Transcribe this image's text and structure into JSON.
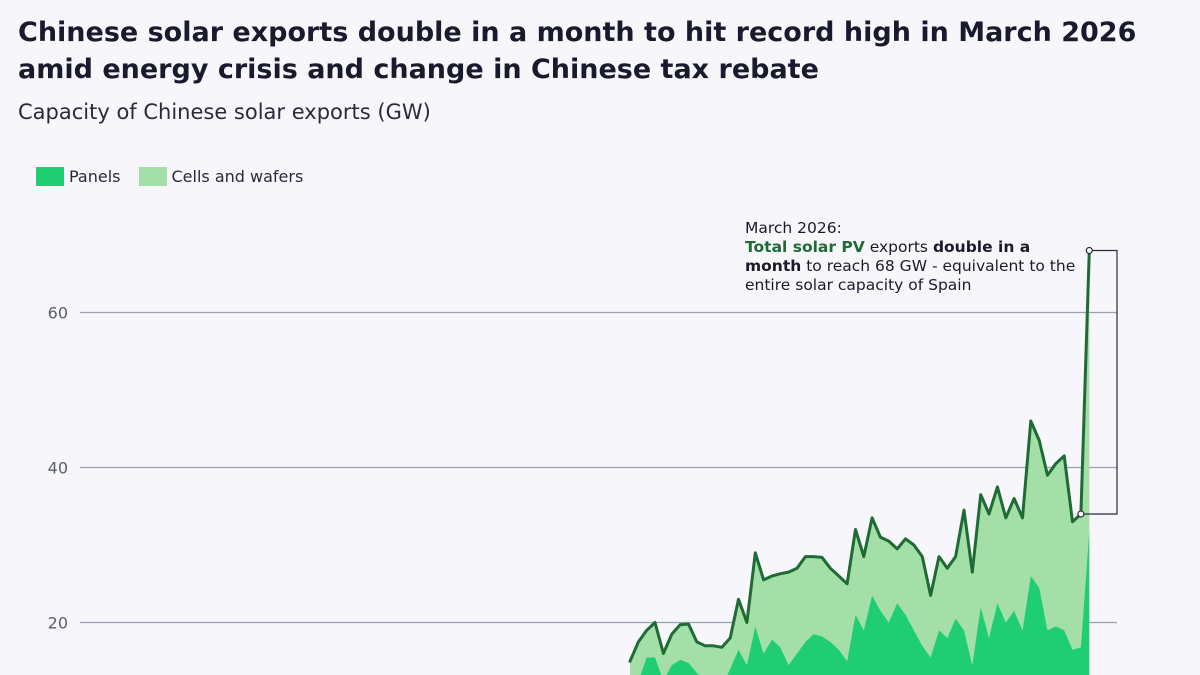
{
  "header": {
    "title": "Chinese solar exports double in a month to hit record high in March 2026 amid energy crisis and change in Chinese tax rebate",
    "subtitle": "Capacity of Chinese solar exports (GW)"
  },
  "legend": {
    "panels_label": "Panels",
    "cells_label": "Cells and wafers",
    "panels_color": "#1fcd72",
    "cells_color": "#a3dfa6",
    "total_line_color": "#1f6b35"
  },
  "annotation": {
    "line1": "March 2026:",
    "seg1": "Total solar PV",
    "seg2": " exports ",
    "seg3": "double in a month",
    "seg4": " to reach 68 GW - equivalent to the entire solar capacity of Spain"
  },
  "chart_data": {
    "type": "area",
    "stacked": true,
    "ylim": [
      0,
      75
    ],
    "yticks": [
      20,
      40,
      60
    ],
    "tick_labels": [
      "20",
      "40",
      "60"
    ],
    "grid": true,
    "legend_position": "top-left",
    "series": [
      {
        "name": "Panels",
        "values": [
          11.5,
          12.5,
          15.5,
          15.5,
          12.5,
          14.5,
          15.2,
          14.8,
          13.5,
          12.5,
          12.0,
          11.8,
          14.0,
          16.5,
          14.5,
          19.5,
          16.0,
          17.8,
          16.8,
          14.5,
          16.0,
          17.5,
          18.5,
          18.2,
          17.5,
          16.5,
          15.0,
          21.0,
          19.0,
          23.5,
          21.5,
          20.0,
          22.5,
          21.0,
          19.0,
          17.0,
          15.5,
          19.0,
          18.0,
          20.5,
          19.0,
          14.5,
          22.0,
          18.0,
          22.5,
          20.0,
          21.5,
          19.0,
          26.0,
          24.5,
          19.0,
          19.5,
          19.0,
          16.5,
          16.8,
          32.0
        ]
      },
      {
        "name": "Cells and wafers",
        "values": [
          3.5,
          5.0,
          3.5,
          4.5,
          3.5,
          4.0,
          4.5,
          5.0,
          4.0,
          4.5,
          5.0,
          5.0,
          4.0,
          6.5,
          5.5,
          9.5,
          9.5,
          8.2,
          9.5,
          12.0,
          11.0,
          11.0,
          10.0,
          10.2,
          9.5,
          9.5,
          10.0,
          11.0,
          9.5,
          10.0,
          9.5,
          10.5,
          7.0,
          9.8,
          11.0,
          11.5,
          8.0,
          9.5,
          9.0,
          8.0,
          15.5,
          12.0,
          14.5,
          16.0,
          15.0,
          13.5,
          14.5,
          14.5,
          20.0,
          19.0,
          20.0,
          21.0,
          22.5,
          16.5,
          17.2,
          36.0
        ]
      }
    ],
    "annotation_point": {
      "label": "March 2026",
      "total": 68,
      "previous": 34
    }
  }
}
